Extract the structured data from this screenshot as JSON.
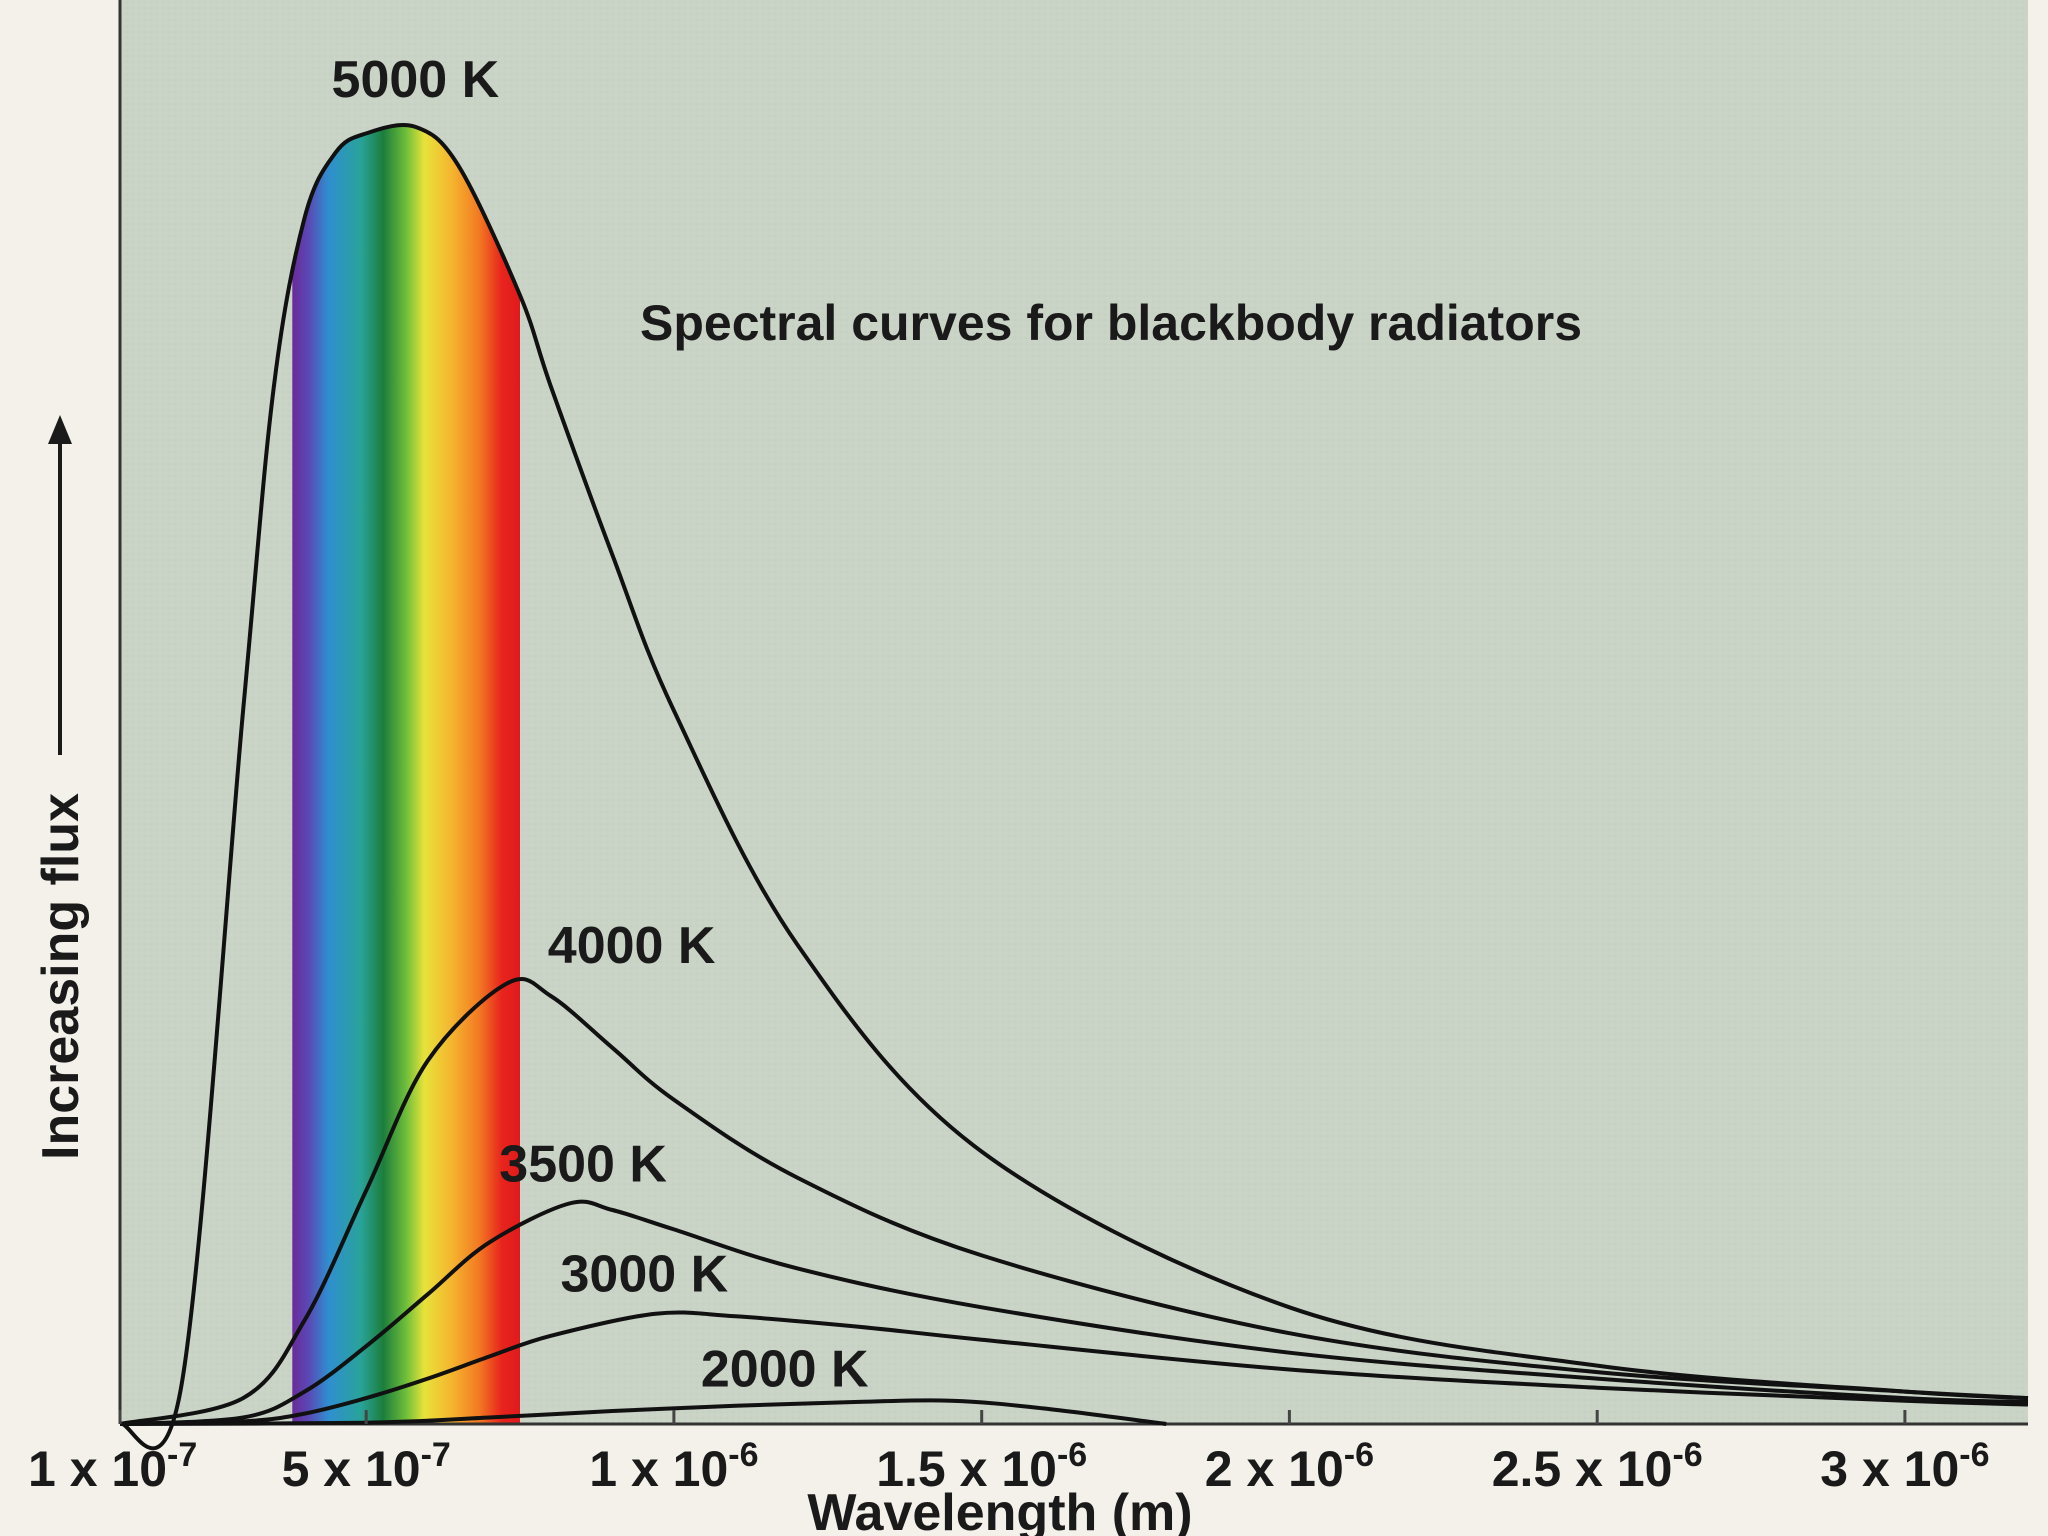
{
  "chart_data": {
    "type": "line",
    "title": "Spectral curves for blackbody radiators",
    "xlabel": "Wavelength (m)",
    "ylabel": "Increasing flux",
    "xlim": [
      1e-07,
      3.2e-06
    ],
    "ylim": [
      0,
      1.04
    ],
    "grid": false,
    "legend": "none (labels placed at curve peaks)",
    "x_ticks": [
      {
        "value": 1e-07,
        "base": "1 x 10",
        "exp": "-7"
      },
      {
        "value": 5e-07,
        "base": "5 x 10",
        "exp": "-7"
      },
      {
        "value": 1e-06,
        "base": "1 x 10",
        "exp": "-6"
      },
      {
        "value": 1.5e-06,
        "base": "1.5 x 10",
        "exp": "-6"
      },
      {
        "value": 2e-06,
        "base": "2 x 10",
        "exp": "-6"
      },
      {
        "value": 2.5e-06,
        "base": "2.5 x 10",
        "exp": "-6"
      },
      {
        "value": 3e-06,
        "base": "3 x 10",
        "exp": "-6"
      }
    ],
    "visible_band": {
      "from": 3.8e-07,
      "to": 7.5e-07
    },
    "series": [
      {
        "name": "5000 K",
        "temperature": 5000,
        "peak_x": 5.8e-07,
        "peak_y": 1.0,
        "x": [
          1e-07,
          2e-07,
          3e-07,
          3.5e-07,
          4e-07,
          4.5e-07,
          5e-07,
          5.8e-07,
          6.5e-07,
          7.5e-07,
          8e-07,
          9e-07,
          1e-06,
          1.2e-06,
          1.5e-06,
          2e-06,
          2.5e-06,
          3e-06,
          3.2e-06
        ],
        "y": [
          0.0,
          0.03,
          0.55,
          0.8,
          0.93,
          0.98,
          0.995,
          1.0,
          0.97,
          0.87,
          0.8,
          0.67,
          0.55,
          0.37,
          0.21,
          0.09,
          0.045,
          0.025,
          0.02
        ]
      },
      {
        "name": "4000 K",
        "temperature": 4000,
        "peak_x": 7.3e-07,
        "peak_y": 0.34,
        "x": [
          1e-07,
          3e-07,
          4e-07,
          5e-07,
          6e-07,
          7.3e-07,
          8e-07,
          9e-07,
          1e-06,
          1.2e-06,
          1.5e-06,
          2e-06,
          2.5e-06,
          3e-06,
          3.2e-06
        ],
        "y": [
          0.0,
          0.02,
          0.08,
          0.18,
          0.28,
          0.34,
          0.33,
          0.29,
          0.25,
          0.19,
          0.13,
          0.07,
          0.04,
          0.025,
          0.02
        ]
      },
      {
        "name": "3500 K",
        "temperature": 3500,
        "peak_x": 8.3e-07,
        "peak_y": 0.17,
        "x": [
          1e-07,
          3e-07,
          4e-07,
          5e-07,
          6e-07,
          7e-07,
          8.3e-07,
          9e-07,
          1e-06,
          1.2e-06,
          1.5e-06,
          2e-06,
          2.5e-06,
          3e-06,
          3.2e-06
        ],
        "y": [
          0.0,
          0.005,
          0.025,
          0.06,
          0.1,
          0.14,
          0.17,
          0.165,
          0.15,
          0.12,
          0.09,
          0.055,
          0.035,
          0.02,
          0.017
        ]
      },
      {
        "name": "3000 K",
        "temperature": 3000,
        "peak_x": 9.7e-07,
        "peak_y": 0.085,
        "x": [
          1e-07,
          3e-07,
          4e-07,
          5e-07,
          6e-07,
          7e-07,
          8e-07,
          9.7e-07,
          1.1e-06,
          1.3e-06,
          1.5e-06,
          2e-06,
          2.5e-06,
          3e-06,
          3.2e-06
        ],
        "y": [
          0.0,
          0.002,
          0.008,
          0.02,
          0.035,
          0.052,
          0.068,
          0.085,
          0.083,
          0.075,
          0.065,
          0.042,
          0.028,
          0.018,
          0.015
        ]
      },
      {
        "name": "2000 K",
        "temperature": 2000,
        "peak_x": 1.45e-06,
        "peak_y": 0.018,
        "x": [
          1e-07,
          5e-07,
          7e-07,
          9e-07,
          1.1e-06,
          1.3e-06,
          1.45e-06,
          1.6e-06,
          1.8e-06
        ],
        "y": [
          0.0,
          0.001,
          0.005,
          0.01,
          0.014,
          0.017,
          0.018,
          0.012,
          0.0
        ]
      }
    ]
  }
}
